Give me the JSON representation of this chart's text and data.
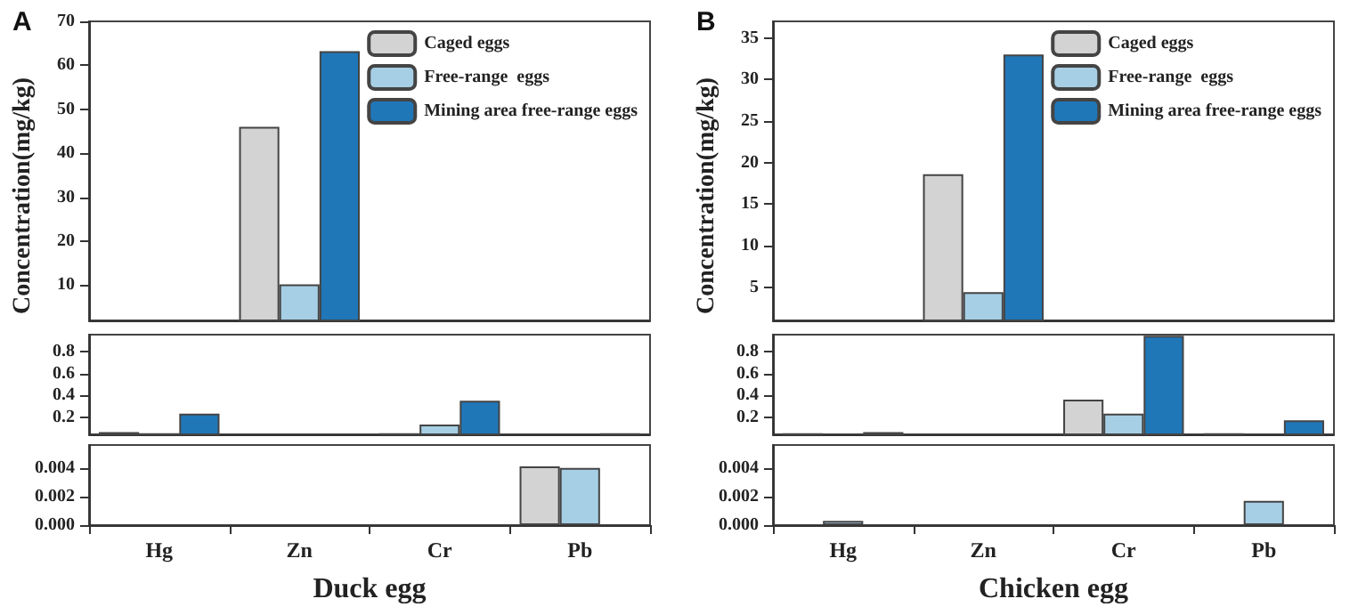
{
  "chart_data": [
    {
      "type": "bar",
      "title": "A",
      "ylabel": "Concentration(mg/kg)",
      "categories": [
        null,
        null,
        null,
        null
      ],
      "legend": "top right",
      "tick_labels": "y",
      "series": [
        {
          "name": "Caged eggs",
          "color": "#d3d3d3",
          "values": [
            null,
            46,
            null,
            null
          ]
        },
        {
          "name": "Free-range  eggs",
          "color": "#a6cfe5",
          "values": [
            null,
            10.2,
            null,
            null
          ]
        },
        {
          "name": "Mining area free-range eggs",
          "color": "#2077b8",
          "values": [
            null,
            63.2,
            null,
            null
          ]
        }
      ],
      "ylim": [
        2,
        70
      ],
      "yticks": [
        10,
        20,
        30,
        40,
        50,
        60,
        70
      ]
    },
    {
      "type": "bar",
      "categories": [
        null,
        null,
        null,
        null
      ],
      "tick_labels": "y",
      "series": [
        {
          "color": "#d3d3d3",
          "values": [
            0.06,
            null,
            0.05,
            null
          ]
        },
        {
          "color": "#a6cfe5",
          "values": [
            0.05,
            null,
            0.13,
            null
          ]
        },
        {
          "color": "#2077b8",
          "values": [
            0.23,
            null,
            0.35,
            0.05
          ]
        }
      ],
      "ylim": [
        0.04,
        0.96
      ],
      "yticks": [
        0.2,
        0.4,
        0.6,
        0.8
      ]
    },
    {
      "type": "bar",
      "xlabel": "Duck egg",
      "categories": [
        "Hg",
        "Zn",
        "Cr",
        "Pb"
      ],
      "series": [
        {
          "color": "#d3d3d3",
          "values": [
            null,
            null,
            null,
            0.0041
          ]
        },
        {
          "color": "#a6cfe5",
          "values": [
            null,
            null,
            null,
            0.004
          ]
        },
        {
          "color": "#2077b8",
          "values": [
            null,
            null,
            null,
            null
          ]
        }
      ],
      "ylim": [
        0,
        0.0056
      ],
      "yticks": [
        {
          "value": 0,
          "label": "0.000"
        },
        0.002,
        0.004
      ]
    },
    {
      "type": "bar",
      "title": "B",
      "ylabel": "Concentration(mg/kg)",
      "categories": [
        null,
        null,
        null,
        null
      ],
      "legend": "top right",
      "tick_labels": "y",
      "series": [
        {
          "name": "Caged eggs",
          "color": "#d3d3d3",
          "values": [
            null,
            18.6,
            null,
            null
          ]
        },
        {
          "name": "Free-range  eggs",
          "color": "#a6cfe5",
          "values": [
            null,
            4.4,
            null,
            null
          ]
        },
        {
          "name": "Mining area free-range eggs",
          "color": "#2077b8",
          "values": [
            null,
            33,
            null,
            null
          ]
        }
      ],
      "ylim": [
        1,
        37
      ],
      "yticks": [
        5,
        10,
        15,
        20,
        25,
        30,
        35
      ]
    },
    {
      "type": "bar",
      "categories": [
        null,
        null,
        null,
        null
      ],
      "tick_labels": "y",
      "series": [
        {
          "color": "#d3d3d3",
          "values": [
            0.05,
            null,
            0.36,
            0.05
          ]
        },
        {
          "color": "#a6cfe5",
          "values": [
            null,
            null,
            0.23,
            null
          ]
        },
        {
          "color": "#2077b8",
          "values": [
            0.06,
            null,
            0.95,
            0.17
          ]
        }
      ],
      "ylim": [
        0.04,
        0.96
      ],
      "yticks": [
        0.2,
        0.4,
        0.6,
        0.8
      ]
    },
    {
      "type": "bar",
      "xlabel": "Chicken egg",
      "categories": [
        "Hg",
        "Zn",
        "Cr",
        "Pb"
      ],
      "series": [
        {
          "color": "#d3d3d3",
          "values": [
            null,
            null,
            null,
            null
          ]
        },
        {
          "color": "#a6cfe5",
          "values": [
            0.0003,
            null,
            null,
            0.0017
          ]
        },
        {
          "color": "#2077b8",
          "values": [
            null,
            null,
            null,
            null
          ]
        }
      ],
      "ylim": [
        0,
        0.0056
      ],
      "yticks": [
        {
          "value": 0,
          "label": "0.000"
        },
        0.002,
        0.004
      ]
    }
  ]
}
